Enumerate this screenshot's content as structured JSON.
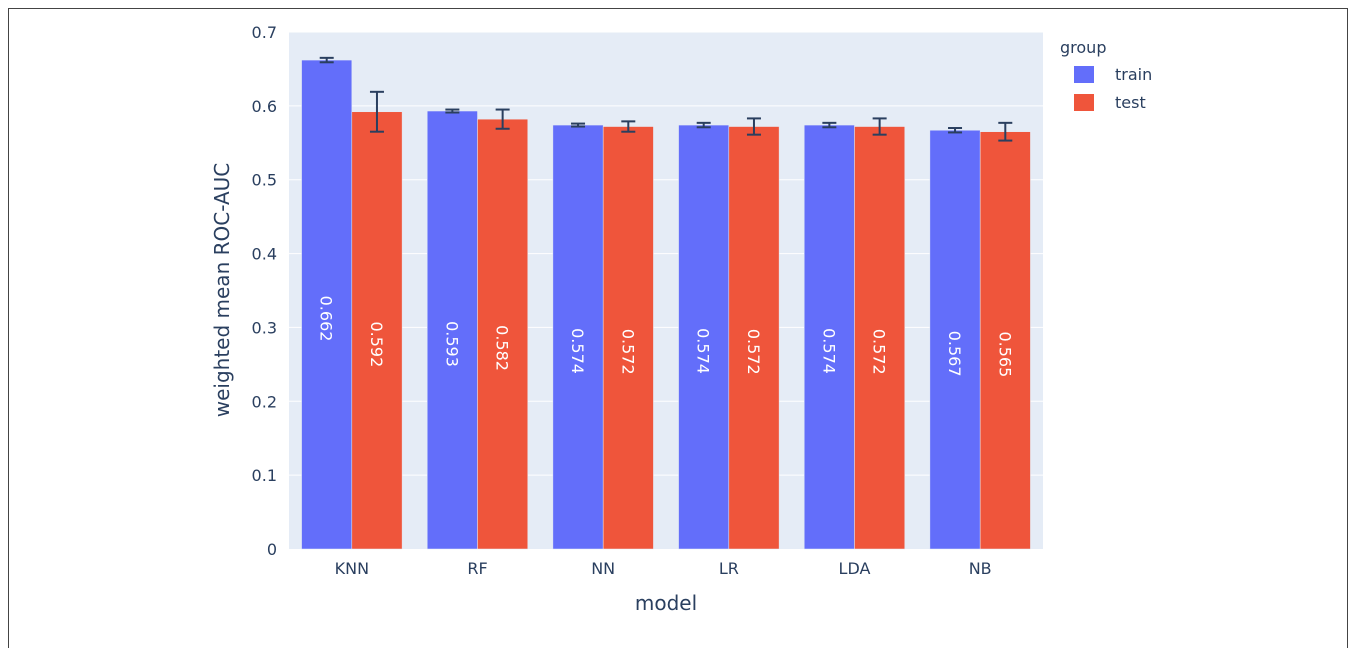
{
  "chart_data": {
    "type": "bar",
    "barmode": "group",
    "title": "",
    "xlabel": "model",
    "ylabel": "weighted mean ROC-AUC",
    "ylim": [
      0,
      0.7
    ],
    "yticks": [
      0,
      0.1,
      0.2,
      0.3,
      0.4,
      0.5,
      0.6,
      0.7
    ],
    "yticklabels": [
      "0",
      "0.1",
      "0.2",
      "0.3",
      "0.4",
      "0.5",
      "0.6",
      "0.7"
    ],
    "categories": [
      "KNN",
      "RF",
      "NN",
      "LR",
      "LDA",
      "NB"
    ],
    "legend": {
      "title": "group",
      "placement": "top-right"
    },
    "grid": true,
    "series": [
      {
        "name": "train",
        "color": "#636efa",
        "values": [
          0.662,
          0.593,
          0.574,
          0.574,
          0.574,
          0.567
        ],
        "labels": [
          "0.662",
          "0.593",
          "0.574",
          "0.574",
          "0.574",
          "0.567"
        ],
        "error": [
          0.003,
          0.002,
          0.002,
          0.003,
          0.003,
          0.003
        ]
      },
      {
        "name": "test",
        "color": "#ef553b",
        "values": [
          0.592,
          0.582,
          0.572,
          0.572,
          0.572,
          0.565
        ],
        "labels": [
          "0.592",
          "0.582",
          "0.572",
          "0.572",
          "0.572",
          "0.565"
        ],
        "error": [
          0.027,
          0.013,
          0.007,
          0.011,
          0.011,
          0.012
        ]
      }
    ]
  }
}
